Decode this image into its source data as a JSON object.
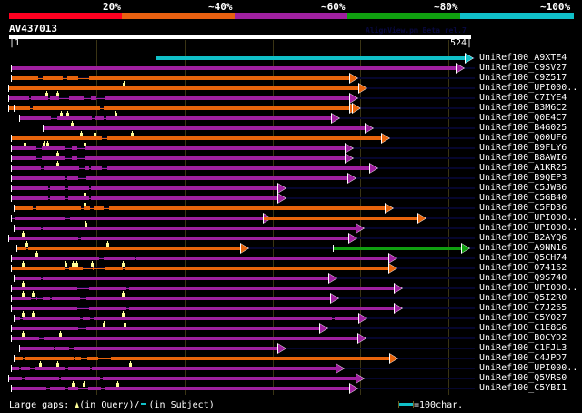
{
  "header": {
    "identity_labels": [
      "20%",
      "~40%",
      "~60%",
      "~80%",
      "~100%"
    ],
    "identity_colors": [
      "#ff0020",
      "#e86010",
      "#a020a0",
      "#10a010",
      "#10c0c8"
    ],
    "query_id": "AV437013",
    "watermark": "AlignView.pm Beta rel.7",
    "query_start": "|1",
    "query_end": "524|"
  },
  "colors": {
    "orange": "#e8640c",
    "magenta": "#a020a0",
    "cyan": "#10c0c8",
    "green": "#10a010",
    "gap": "#ffff99"
  },
  "hits": [
    {
      "name": "UniRef100_A9XTE4",
      "color": "cyan"
    },
    {
      "name": "UniRef100_C9SV27",
      "color": "magenta"
    },
    {
      "name": "UniRef100_C9Z517",
      "color": "orange"
    },
    {
      "name": "UniRef100_UPI000..",
      "color": "orange"
    },
    {
      "name": "UniRef100_C7IYE4",
      "color": "magenta"
    },
    {
      "name": "UniRef100_B3M6C2",
      "color": "orange"
    },
    {
      "name": "UniRef100_Q0E4C7",
      "color": "magenta"
    },
    {
      "name": "UniRef100_B4G025",
      "color": "magenta"
    },
    {
      "name": "UniRef100_Q00UF6",
      "color": "orange"
    },
    {
      "name": "UniRef100_B9FLY6",
      "color": "magenta"
    },
    {
      "name": "UniRef100_B8AWI6",
      "color": "magenta"
    },
    {
      "name": "UniRef100_A1KR25",
      "color": "magenta"
    },
    {
      "name": "UniRef100_B9QEP3",
      "color": "magenta"
    },
    {
      "name": "UniRef100_C5JWB6",
      "color": "magenta"
    },
    {
      "name": "UniRef100_C5GB40",
      "color": "magenta"
    },
    {
      "name": "UniRef100_C5FD36",
      "color": "orange"
    },
    {
      "name": "UniRef100_UPI000..",
      "color": "magenta"
    },
    {
      "name": "UniRef100_UPI000..",
      "color": "magenta"
    },
    {
      "name": "UniRef100_B2AYQ6",
      "color": "magenta"
    },
    {
      "name": "UniRef100_A9NN16",
      "color": "orange"
    },
    {
      "name": "UniRef100_Q5CH74",
      "color": "magenta"
    },
    {
      "name": "UniRef100_O74162",
      "color": "orange"
    },
    {
      "name": "UniRef100_Q9S740",
      "color": "magenta"
    },
    {
      "name": "UniRef100_UPI000..",
      "color": "magenta"
    },
    {
      "name": "UniRef100_Q5I2R0",
      "color": "magenta"
    },
    {
      "name": "UniRef100_C7J265",
      "color": "magenta"
    },
    {
      "name": "UniRef100_C5Y027",
      "color": "magenta"
    },
    {
      "name": "UniRef100_C1E8G6",
      "color": "magenta"
    },
    {
      "name": "UniRef100_B0CYD2",
      "color": "magenta"
    },
    {
      "name": "UniRef100_C1FJL3",
      "color": "magenta"
    },
    {
      "name": "UniRef100_C4JPD7",
      "color": "orange"
    },
    {
      "name": "UniRef100_UPI000..",
      "color": "magenta"
    },
    {
      "name": "UniRef100_Q5VRS0",
      "color": "magenta"
    },
    {
      "name": "UniRef100_C5YBI1",
      "color": "magenta"
    }
  ],
  "footer": {
    "gaps_label": "Large gaps:",
    "query_gap_label": "(in Query)/",
    "subject_gap_label": "(in Subject)",
    "scale_label": "=100char."
  }
}
